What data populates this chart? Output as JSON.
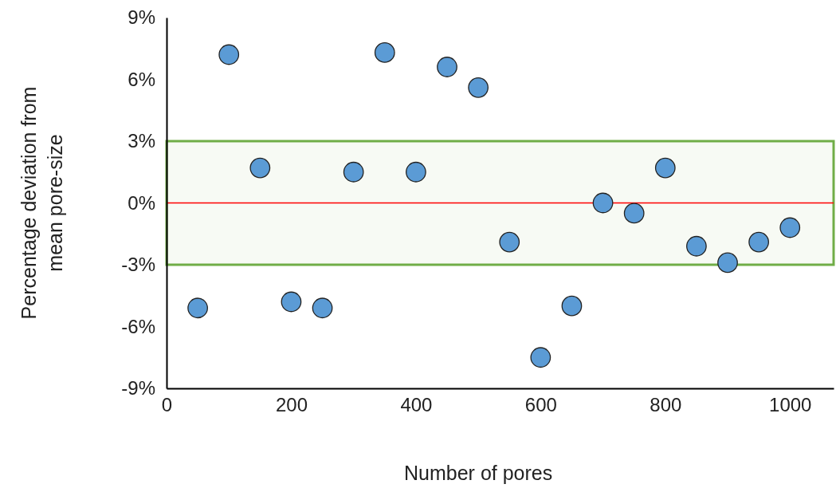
{
  "chart_data": {
    "type": "scatter",
    "xlabel": "Number of pores",
    "ylabel": "Percentage deviation from mean pore-size",
    "x": [
      50,
      100,
      150,
      200,
      250,
      300,
      350,
      400,
      450,
      500,
      550,
      600,
      650,
      700,
      750,
      800,
      850,
      900,
      950,
      1000
    ],
    "series": [
      {
        "color": "#5b9bd5",
        "values": [
          -5.1,
          7.2,
          1.7,
          -4.8,
          -5.1,
          1.5,
          7.3,
          1.5,
          6.6,
          5.6,
          -1.9,
          -7.5,
          -5.0,
          0,
          -0.5,
          1.7,
          -2.1,
          -2.9,
          -1.9,
          -1.2
        ]
      }
    ],
    "marker": "circle",
    "xlim": [
      0,
      1070
    ],
    "xticks": [
      0,
      200,
      400,
      600,
      800,
      1000
    ],
    "ylim": [
      -9,
      9
    ],
    "yticks": [
      {
        "value": -9,
        "label": "-9%"
      },
      {
        "value": -6,
        "label": "-6%"
      },
      {
        "value": -3,
        "label": "-3%"
      },
      {
        "value": 0,
        "label": "0%"
      },
      {
        "value": 3,
        "label": "3%"
      },
      {
        "value": 6,
        "label": "6%"
      },
      {
        "value": 9,
        "label": "9%"
      }
    ],
    "ref_lines": [
      {
        "axis": "y",
        "value": 0,
        "color": "#ff0000"
      }
    ],
    "bands": [
      {
        "axis": "y",
        "from": -3,
        "to": 3,
        "color": "#70ad47"
      }
    ]
  }
}
